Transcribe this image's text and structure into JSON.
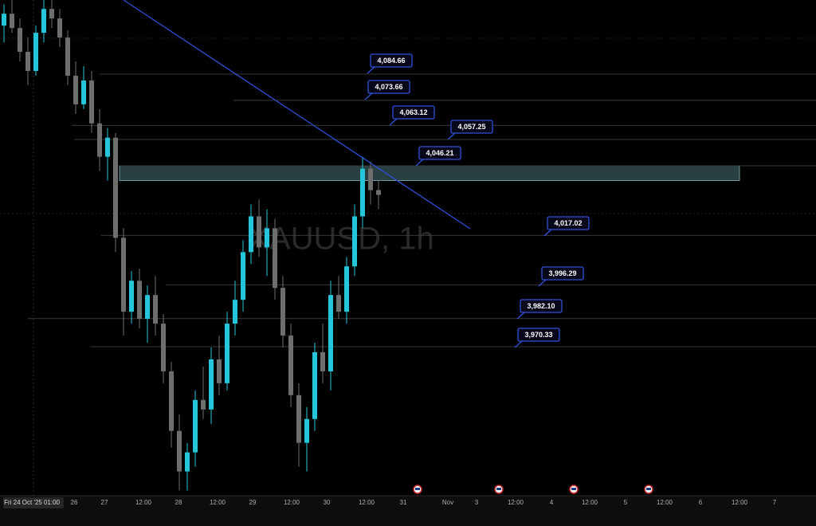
{
  "chart_data": {
    "type": "candlestick",
    "watermark": "XAUUSD, 1h",
    "ylim": [
      3907.82,
      4115.75
    ],
    "up_color": "#26c6da",
    "down_color": "#6e6e6e",
    "level_color": "#2f4fd6",
    "ohlc": [
      [
        4105,
        4114,
        4098,
        4110
      ],
      [
        4110,
        4116,
        4102,
        4104
      ],
      [
        4104,
        4108,
        4090,
        4094
      ],
      [
        4094,
        4100,
        4080,
        4086
      ],
      [
        4086,
        4105,
        4084,
        4102
      ],
      [
        4102,
        4116,
        4098,
        4112
      ],
      [
        4112,
        4116,
        4104,
        4108
      ],
      [
        4108,
        4112,
        4096,
        4100
      ],
      [
        4100,
        4103,
        4080,
        4084
      ],
      [
        4084,
        4090,
        4068,
        4072
      ],
      [
        4072,
        4088,
        4070,
        4082
      ],
      [
        4082,
        4086,
        4060,
        4064
      ],
      [
        4064,
        4070,
        4044,
        4050
      ],
      [
        4050,
        4062,
        4040,
        4058
      ],
      [
        4058,
        4060,
        4010,
        4016
      ],
      [
        4016,
        4020,
        3975,
        3985
      ],
      [
        3985,
        4002,
        3980,
        3998
      ],
      [
        3998,
        4003,
        3978,
        3982
      ],
      [
        3982,
        3996,
        3972,
        3992
      ],
      [
        3992,
        4000,
        3975,
        3980
      ],
      [
        3980,
        3984,
        3955,
        3960
      ],
      [
        3960,
        3964,
        3928,
        3935
      ],
      [
        3935,
        3942,
        3910,
        3918
      ],
      [
        3918,
        3930,
        3910,
        3926
      ],
      [
        3926,
        3952,
        3920,
        3948
      ],
      [
        3948,
        3962,
        3940,
        3944
      ],
      [
        3944,
        3970,
        3938,
        3965
      ],
      [
        3965,
        3975,
        3950,
        3955
      ],
      [
        3955,
        3985,
        3952,
        3980
      ],
      [
        3980,
        3998,
        3975,
        3990
      ],
      [
        3990,
        4015,
        3985,
        4010
      ],
      [
        4010,
        4030,
        4005,
        4025
      ],
      [
        4025,
        4032,
        4008,
        4012
      ],
      [
        4012,
        4028,
        4000,
        4020
      ],
      [
        4020,
        4024,
        3990,
        3995
      ],
      [
        3995,
        4000,
        3970,
        3975
      ],
      [
        3975,
        3980,
        3945,
        3950
      ],
      [
        3950,
        3955,
        3920,
        3930
      ],
      [
        3930,
        3945,
        3918,
        3940
      ],
      [
        3940,
        3972,
        3935,
        3968
      ],
      [
        3968,
        3980,
        3955,
        3960
      ],
      [
        3960,
        3998,
        3952,
        3992
      ],
      [
        3992,
        4000,
        3982,
        3985
      ],
      [
        3985,
        4008,
        3980,
        4004
      ],
      [
        4004,
        4030,
        4000,
        4025
      ],
      [
        4025,
        4050,
        4020,
        4045
      ],
      [
        4045,
        4048,
        4030,
        4036
      ],
      [
        4036,
        4040,
        4028,
        4034
      ]
    ],
    "levels": [
      {
        "value": 4084.66,
        "label": "4,084.66"
      },
      {
        "value": 4073.66,
        "label": "4,073.66"
      },
      {
        "value": 4063.12,
        "label": "4,063.12"
      },
      {
        "value": 4057.25,
        "label": "4,057.25"
      },
      {
        "value": 4046.21,
        "label": "4,046.21"
      },
      {
        "value": 4017.02,
        "label": "4,017.02"
      },
      {
        "value": 3996.29,
        "label": "3,996.29"
      },
      {
        "value": 3982.1,
        "label": "3,982.10"
      },
      {
        "value": 3970.33,
        "label": "3,970.33"
      }
    ],
    "zone": [
      4040,
      4046.21
    ],
    "x_labels": [
      "Fri 24 Oct '25",
      "01:00",
      "26",
      "27",
      "12:00",
      "28",
      "12:00",
      "29",
      "12:00",
      "30",
      "12:00",
      "31",
      "Nov",
      "3",
      "12:00",
      "4",
      "12:00",
      "5",
      "12:00",
      "6",
      "12:00",
      "7"
    ]
  }
}
